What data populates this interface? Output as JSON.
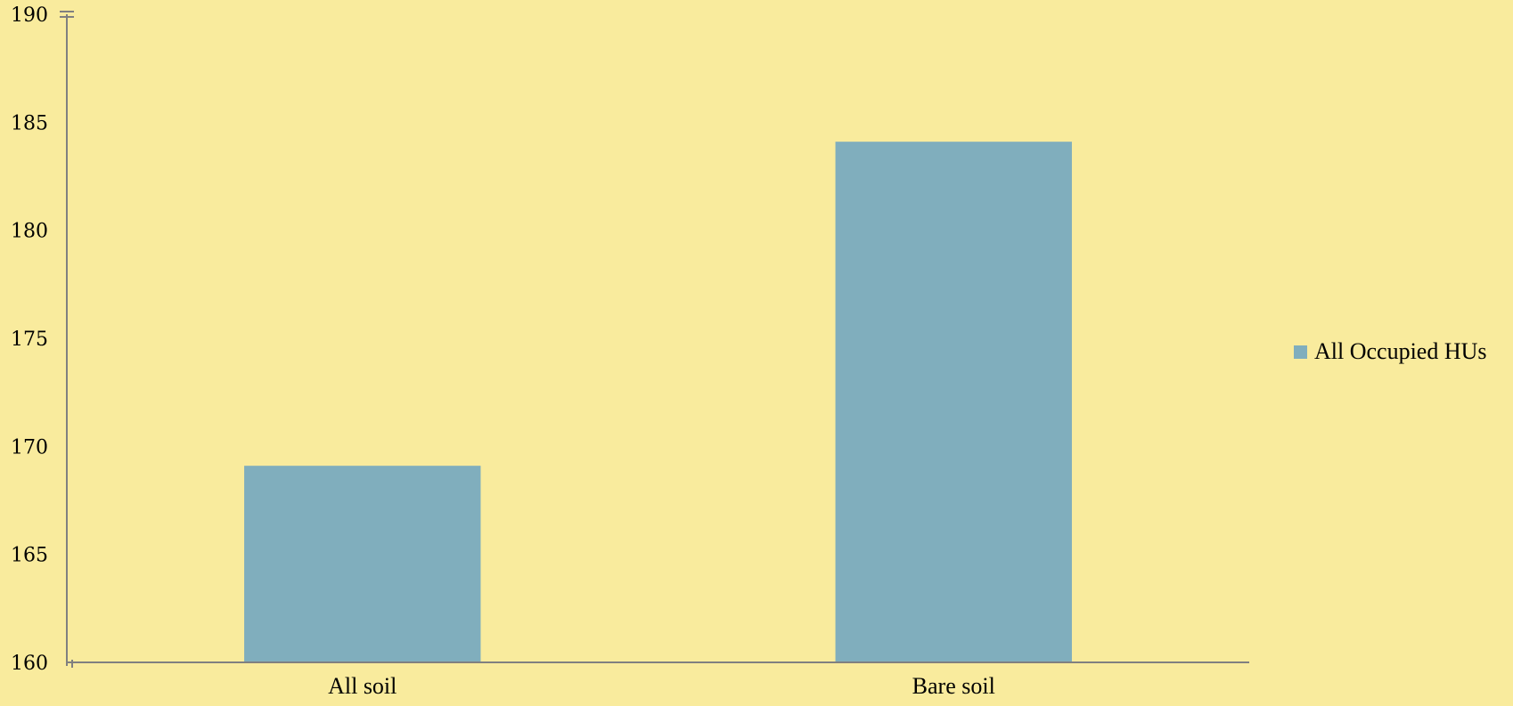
{
  "chart_data": {
    "type": "bar",
    "categories": [
      "All soil",
      "Bare soil"
    ],
    "series": [
      {
        "name": "All Occupied HUs",
        "values": [
          169.1,
          184.1
        ]
      }
    ],
    "ylim": [
      160,
      190
    ],
    "yticks": [
      160,
      165,
      170,
      175,
      180,
      185,
      190
    ],
    "ytick_labels": [
      "160",
      "165",
      "170",
      "175",
      "180",
      "185",
      "190"
    ],
    "grid": false,
    "legend_position": "right",
    "colors": {
      "background": "#f9eb9d",
      "bar": "#80aebd",
      "axis": "#808080"
    }
  },
  "legend": {
    "label": "All Occupied HUs"
  }
}
